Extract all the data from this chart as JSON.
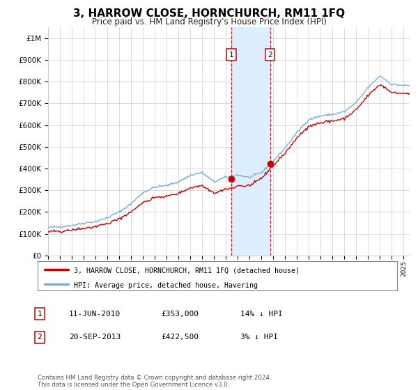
{
  "title": "3, HARROW CLOSE, HORNCHURCH, RM11 1FQ",
  "subtitle": "Price paid vs. HM Land Registry's House Price Index (HPI)",
  "legend_line1": "3, HARROW CLOSE, HORNCHURCH, RM11 1FQ (detached house)",
  "legend_line2": "HPI: Average price, detached house, Havering",
  "footer": "Contains HM Land Registry data © Crown copyright and database right 2024.\nThis data is licensed under the Open Government Licence v3.0.",
  "sale1_label": "1",
  "sale1_date": "11-JUN-2010",
  "sale1_price": "£353,000",
  "sale1_hpi": "14% ↓ HPI",
  "sale1_x": 2010.44,
  "sale1_y": 353000,
  "sale2_label": "2",
  "sale2_date": "20-SEP-2013",
  "sale2_price": "£422,500",
  "sale2_hpi": "3% ↓ HPI",
  "sale2_x": 2013.72,
  "sale2_y": 422500,
  "property_color": "#cc0000",
  "hpi_color": "#7aadd7",
  "shade_color": "#ddeeff",
  "grid_color": "#cccccc",
  "bg_color": "#ffffff",
  "xmin": 1995.0,
  "xmax": 2025.5,
  "ymin": 0,
  "ymax": 1050000,
  "yticks": [
    0,
    100000,
    200000,
    300000,
    400000,
    500000,
    600000,
    700000,
    800000,
    900000,
    1000000
  ],
  "ytick_labels": [
    "£0",
    "£100K",
    "£200K",
    "£300K",
    "£400K",
    "£500K",
    "£600K",
    "£700K",
    "£800K",
    "£900K",
    "£1M"
  ],
  "xticks": [
    1995,
    1996,
    1997,
    1998,
    1999,
    2000,
    2001,
    2002,
    2003,
    2004,
    2005,
    2006,
    2007,
    2008,
    2009,
    2010,
    2011,
    2012,
    2013,
    2014,
    2015,
    2016,
    2017,
    2018,
    2019,
    2020,
    2021,
    2022,
    2023,
    2024,
    2025
  ],
  "hpi_anchors": {
    "1995": 130000,
    "1996": 133000,
    "1997": 140000,
    "1998": 150000,
    "1999": 158000,
    "2000": 175000,
    "2001": 202000,
    "2002": 240000,
    "2003": 292000,
    "2004": 318000,
    "2005": 325000,
    "2006": 342000,
    "2007": 372000,
    "2008": 385000,
    "2009": 342000,
    "2010": 364000,
    "2011": 374000,
    "2012": 362000,
    "2013": 385000,
    "2014": 438000,
    "2015": 500000,
    "2016": 572000,
    "2017": 632000,
    "2018": 648000,
    "2019": 655000,
    "2020": 668000,
    "2021": 710000,
    "2022": 780000,
    "2023": 835000,
    "2024": 795000,
    "2025": 790000
  }
}
